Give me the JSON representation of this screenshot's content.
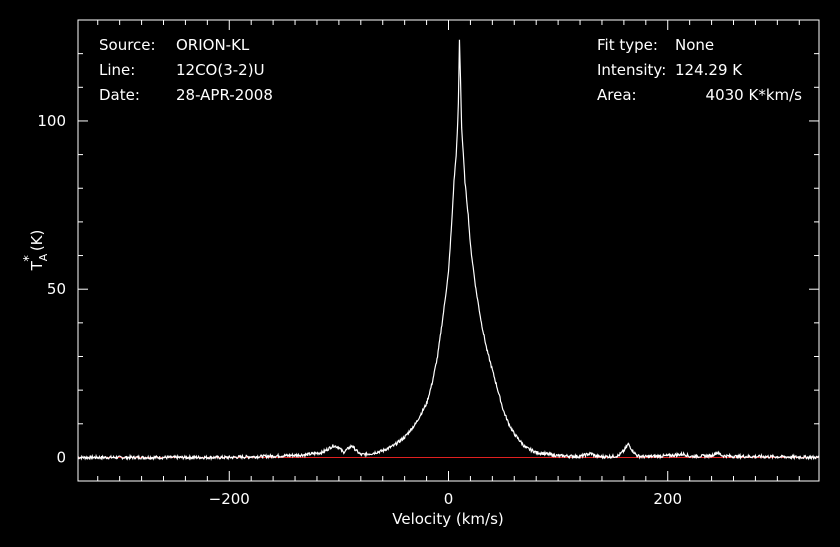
{
  "info": {
    "source_label": "Source:",
    "source_value": "ORION-KL",
    "line_label": "Line:",
    "line_value": "12CO(3-2)U",
    "date_label": "Date:",
    "date_value": "28-APR-2008",
    "fit_label": "Fit type:",
    "fit_value": "None",
    "intensity_label": "Intensity:",
    "intensity_value": "124.29 K",
    "area_label": "Area:",
    "area_value": "4030 K*km/s"
  },
  "colors": {
    "background": "#000000",
    "foreground": "#ffffff",
    "baseline": "#e02020"
  },
  "chart_data": {
    "type": "line",
    "title": "",
    "xlabel": "Velocity (km/s)",
    "ylabel": "T*A (K)",
    "ylabel_main": "T",
    "ylabel_sub": "A",
    "ylabel_sup": "*",
    "ylabel_unit": "(K)",
    "xlim": [
      -338,
      338
    ],
    "ylim": [
      -7,
      130
    ],
    "xticks": [
      -200,
      0,
      200
    ],
    "xtick_labels": [
      "−200",
      "0",
      "200"
    ],
    "yticks": [
      0,
      50,
      100
    ],
    "ytick_labels": [
      "0",
      "50",
      "100"
    ],
    "grid": false,
    "legend": "none",
    "baseline_value": 0,
    "series": [
      {
        "color": "#ffffff",
        "x": [
          -338,
          -300,
          -250,
          -200,
          -170,
          -150,
          -130,
          -115,
          -110,
          -105,
          -100,
          -96,
          -92,
          -88,
          -84,
          -80,
          -70,
          -60,
          -50,
          -40,
          -30,
          -20,
          -15,
          -10,
          -5,
          0,
          3,
          5,
          7,
          8,
          9,
          10,
          11,
          12,
          15,
          18,
          20,
          25,
          30,
          35,
          40,
          45,
          50,
          55,
          60,
          70,
          80,
          100,
          120,
          130,
          135,
          140,
          150,
          155,
          160,
          164,
          168,
          172,
          176,
          180,
          200,
          215,
          220,
          240,
          245,
          250,
          260,
          300,
          338
        ],
        "values": [
          0,
          0,
          0,
          0,
          0.3,
          0.5,
          0.8,
          1.5,
          2.5,
          3.5,
          3.0,
          1.5,
          2.5,
          3.5,
          2.0,
          0.8,
          1.2,
          2.0,
          3.5,
          6.0,
          10,
          16,
          22,
          30,
          42,
          55,
          70,
          82,
          90,
          96,
          105,
          124,
          112,
          98,
          82,
          72,
          63,
          50,
          40,
          32,
          26,
          20,
          14,
          10,
          7,
          3.0,
          1.5,
          0.5,
          0.3,
          1.2,
          0.3,
          0.2,
          0.3,
          0.5,
          2.0,
          4.0,
          2.0,
          0.5,
          0.3,
          0.2,
          0.5,
          1.0,
          0.3,
          0.5,
          1.5,
          0.5,
          0.3,
          0.2,
          0
        ]
      }
    ]
  }
}
